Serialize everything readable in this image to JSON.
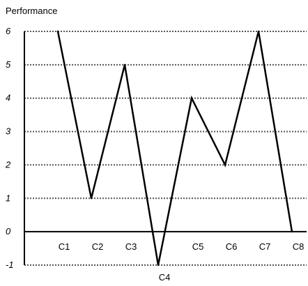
{
  "chart_data": {
    "type": "line",
    "title": "",
    "ylabel": "Performance",
    "xlabel": "",
    "categories": [
      "C1",
      "C2",
      "C3",
      "C4",
      "C5",
      "C6",
      "C7",
      "C8"
    ],
    "values": [
      6,
      1,
      5,
      -1,
      4,
      2,
      6,
      0
    ],
    "ylim": [
      -1,
      6
    ],
    "yticks": [
      "6",
      "5",
      "4",
      "3",
      "2",
      "1",
      "0",
      "-1"
    ],
    "grid": "horizontal dotted",
    "line_color": "#000000",
    "grid_color": "#555555"
  }
}
